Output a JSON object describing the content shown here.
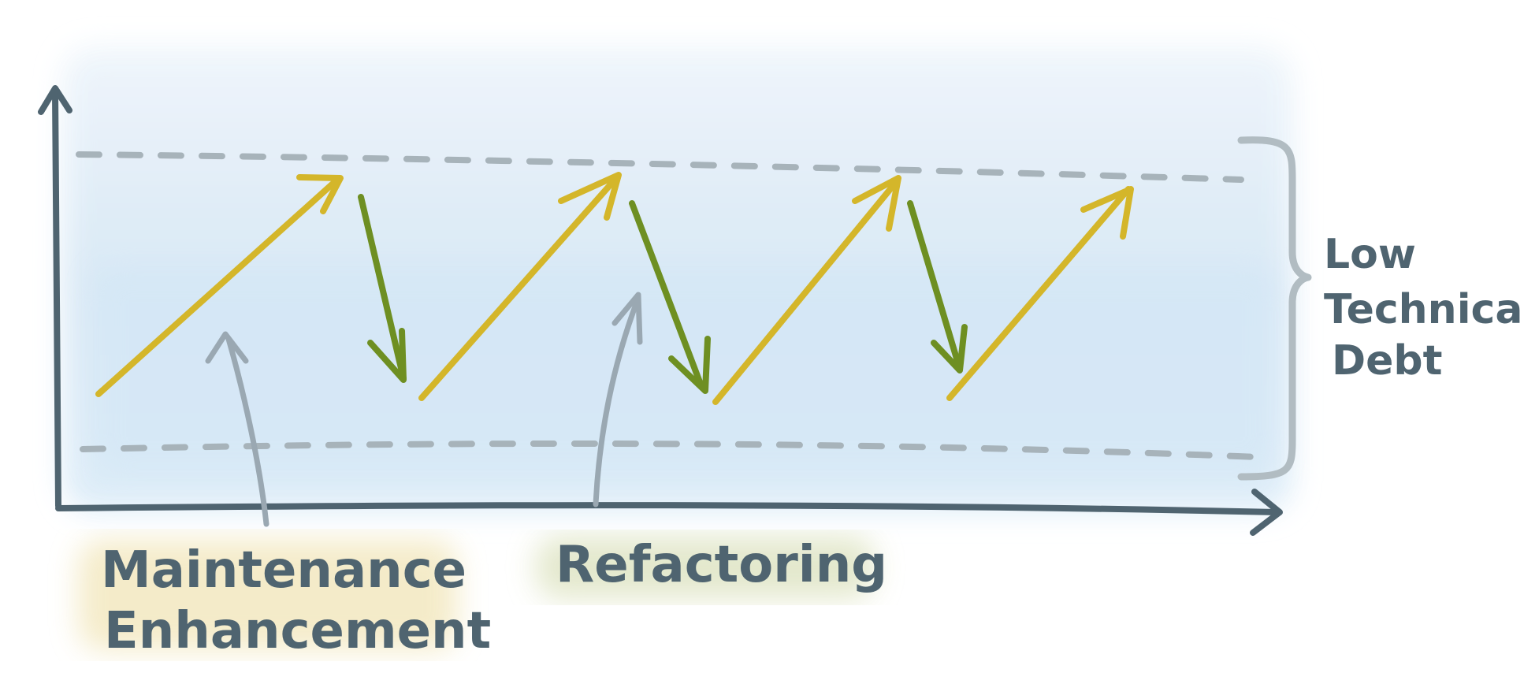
{
  "diagram": {
    "band_label": [
      "Low",
      "Technical",
      "Debt"
    ],
    "callouts": {
      "maintenance": [
        "Maintenance",
        "Enhancement"
      ],
      "refactoring": "Refactoring"
    }
  },
  "colors": {
    "background_wash": "#dcebf6",
    "axis": "#4f6470",
    "dashed_bounds": "#a7b3ba",
    "rise_arrows": "#d4b62a",
    "fall_arrows": "#6e8f22",
    "callout_arrows": "#9aa8b2",
    "brace": "#b1bcc2",
    "highlight_maintenance": "#f3e8c0",
    "highlight_refactoring": "#e1e6c8",
    "label_text": "#4f6470"
  },
  "icons": {
    "arrow_up_right": "rise-arrow-icon",
    "arrow_down": "fall-arrow-icon",
    "curly_brace": "brace-icon"
  }
}
